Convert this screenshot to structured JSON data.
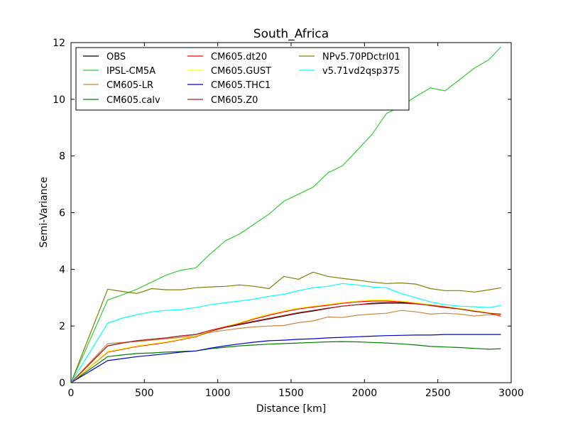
{
  "chart_data": {
    "type": "line",
    "title": "South_Africa",
    "xlabel": "Distance [km]",
    "ylabel": "Semi-Variance",
    "xlim": [
      0,
      3000
    ],
    "ylim": [
      0,
      12
    ],
    "xticks": [
      0,
      500,
      1000,
      1500,
      2000,
      2500,
      3000
    ],
    "yticks": [
      0,
      2,
      4,
      6,
      8,
      10,
      12
    ],
    "grid": false,
    "legend_position": "top-left",
    "x": [
      0,
      250,
      350,
      450,
      550,
      650,
      750,
      850,
      950,
      1050,
      1150,
      1250,
      1350,
      1450,
      1550,
      1650,
      1750,
      1850,
      1950,
      2050,
      2150,
      2250,
      2350,
      2450,
      2550,
      2650,
      2750,
      2850,
      2930
    ],
    "series": [
      {
        "name": "OBS",
        "color": "#000000",
        "values": [
          0,
          1.3,
          1.4,
          1.48,
          1.53,
          1.58,
          1.65,
          1.7,
          1.82,
          1.95,
          2.05,
          2.15,
          2.25,
          2.35,
          2.45,
          2.53,
          2.62,
          2.7,
          2.75,
          2.8,
          2.82,
          2.82,
          2.8,
          2.75,
          2.68,
          2.6,
          2.52,
          2.45,
          2.4
        ]
      },
      {
        "name": "IPSL-CM5A",
        "color": "#33cc33",
        "values": [
          0,
          2.92,
          3.1,
          3.3,
          3.55,
          3.8,
          3.97,
          4.05,
          4.55,
          5.0,
          5.25,
          5.6,
          5.95,
          6.4,
          6.65,
          6.9,
          7.4,
          7.65,
          8.2,
          8.75,
          9.5,
          9.75,
          10.1,
          10.4,
          10.3,
          10.7,
          11.1,
          11.4,
          11.85
        ]
      },
      {
        "name": "CM605-LR",
        "color": "#cd853f",
        "values": [
          0,
          1.38,
          1.42,
          1.45,
          1.5,
          1.55,
          1.6,
          1.65,
          1.78,
          1.85,
          1.92,
          1.97,
          2.0,
          2.02,
          2.12,
          2.18,
          2.32,
          2.3,
          2.38,
          2.42,
          2.45,
          2.55,
          2.5,
          2.42,
          2.45,
          2.42,
          2.35,
          2.4,
          2.38
        ]
      },
      {
        "name": "CM605.calv",
        "color": "#008000",
        "values": [
          0,
          0.92,
          0.98,
          1.03,
          1.05,
          1.08,
          1.1,
          1.12,
          1.2,
          1.25,
          1.3,
          1.33,
          1.36,
          1.38,
          1.4,
          1.42,
          1.44,
          1.45,
          1.44,
          1.42,
          1.4,
          1.37,
          1.33,
          1.28,
          1.26,
          1.24,
          1.21,
          1.18,
          1.2
        ]
      },
      {
        "name": "CM605.dt20",
        "color": "#ff0000",
        "values": [
          0,
          1.08,
          1.18,
          1.28,
          1.35,
          1.42,
          1.52,
          1.62,
          1.82,
          1.95,
          2.1,
          2.25,
          2.38,
          2.5,
          2.6,
          2.67,
          2.73,
          2.8,
          2.85,
          2.88,
          2.88,
          2.85,
          2.8,
          2.72,
          2.65,
          2.6,
          2.52,
          2.45,
          2.35
        ]
      },
      {
        "name": "CM605.GUST",
        "color": "#ffff00",
        "values": [
          0,
          1.1,
          1.2,
          1.3,
          1.37,
          1.44,
          1.54,
          1.64,
          1.84,
          1.98,
          2.12,
          2.28,
          2.42,
          2.54,
          2.63,
          2.7,
          2.76,
          2.83,
          2.88,
          2.92,
          2.92,
          2.88,
          2.82,
          2.75,
          2.68,
          2.62,
          2.55,
          2.47,
          2.38
        ]
      },
      {
        "name": "CM605.THC1",
        "color": "#0000cc",
        "values": [
          0,
          0.78,
          0.85,
          0.92,
          0.97,
          1.02,
          1.08,
          1.12,
          1.22,
          1.3,
          1.37,
          1.43,
          1.48,
          1.5,
          1.53,
          1.55,
          1.58,
          1.6,
          1.62,
          1.64,
          1.66,
          1.67,
          1.68,
          1.68,
          1.7,
          1.7,
          1.7,
          1.7,
          1.7
        ]
      },
      {
        "name": "CM605.Z0",
        "color": "#b22222",
        "values": [
          0,
          1.3,
          1.4,
          1.48,
          1.53,
          1.58,
          1.65,
          1.7,
          1.85,
          1.97,
          2.07,
          2.17,
          2.27,
          2.37,
          2.47,
          2.55,
          2.63,
          2.7,
          2.75,
          2.78,
          2.8,
          2.8,
          2.78,
          2.73,
          2.67,
          2.6,
          2.52,
          2.45,
          2.42
        ]
      },
      {
        "name": "NPv5.70PDctrl01",
        "color": "#808000",
        "values": [
          0,
          3.3,
          3.22,
          3.15,
          3.32,
          3.28,
          3.28,
          3.35,
          3.38,
          3.4,
          3.45,
          3.4,
          3.32,
          3.75,
          3.65,
          3.9,
          3.75,
          3.68,
          3.62,
          3.55,
          3.5,
          3.52,
          3.48,
          3.32,
          3.25,
          3.25,
          3.2,
          3.28,
          3.35
        ]
      },
      {
        "name": "v5.71vd2qsp375",
        "color": "#00ffff",
        "values": [
          0,
          2.1,
          2.28,
          2.4,
          2.5,
          2.55,
          2.58,
          2.65,
          2.75,
          2.82,
          2.88,
          2.95,
          3.05,
          3.12,
          3.25,
          3.35,
          3.4,
          3.5,
          3.45,
          3.38,
          3.35,
          3.15,
          3.0,
          2.85,
          2.75,
          2.7,
          2.68,
          2.65,
          2.72
        ]
      }
    ]
  }
}
